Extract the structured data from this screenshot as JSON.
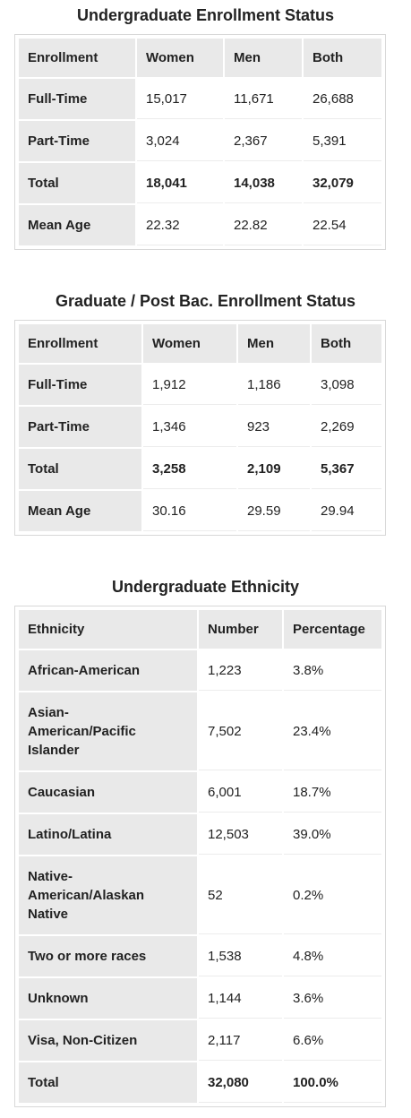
{
  "undergrad": {
    "title": "Undergraduate Enrollment Status",
    "headers": [
      "Enrollment",
      "Women",
      "Men",
      "Both"
    ],
    "rows": [
      [
        "Full-Time",
        "15,017",
        "11,671",
        "26,688"
      ],
      [
        "Part-Time",
        "3,024",
        "2,367",
        "5,391"
      ],
      [
        "Total",
        "18,041",
        "14,038",
        "32,079"
      ],
      [
        "Mean Age",
        "22.32",
        "22.82",
        "22.54"
      ]
    ]
  },
  "graduate": {
    "title": "Graduate / Post Bac. Enrollment Status",
    "headers": [
      "Enrollment",
      "Women",
      "Men",
      "Both"
    ],
    "rows": [
      [
        "Full-Time",
        "1,912",
        "1,186",
        "3,098"
      ],
      [
        "Part-Time",
        "1,346",
        "923",
        "2,269"
      ],
      [
        "Total",
        "3,258",
        "2,109",
        "5,367"
      ],
      [
        "Mean Age",
        "30.16",
        "29.59",
        "29.94"
      ]
    ]
  },
  "ethnicity": {
    "title": "Undergraduate Ethnicity",
    "headers": [
      "Ethnicity",
      "Number",
      "Percentage"
    ],
    "rows": [
      [
        "African-American",
        "1,223",
        "3.8%"
      ],
      [
        "Asian-American/Pacific Islander",
        "7,502",
        "23.4%"
      ],
      [
        "Caucasian",
        "6,001",
        "18.7%"
      ],
      [
        "Latino/Latina",
        "12,503",
        "39.0%"
      ],
      [
        "Native-American/Alaskan Native",
        "52",
        "0.2%"
      ],
      [
        "Two or more races",
        "1,538",
        "4.8%"
      ],
      [
        "Unknown",
        "1,144",
        "3.6%"
      ],
      [
        "Visa, Non-Citizen",
        "2,117",
        "6.6%"
      ],
      [
        "Total",
        "32,080",
        "100.0%"
      ]
    ]
  }
}
